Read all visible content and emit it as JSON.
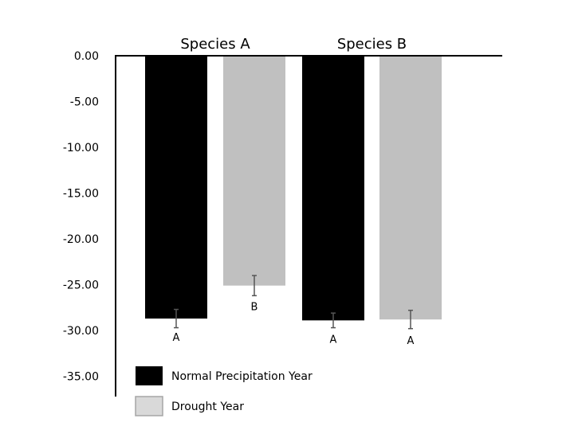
{
  "chart_data": {
    "type": "bar",
    "title": "",
    "xlabel": "",
    "ylabel": "",
    "ylim": [
      -35,
      0
    ],
    "yticks": [
      "0.00",
      "-5.00",
      "-10.00",
      "-15.00",
      "-20.00",
      "-25.00",
      "-30.00",
      "-35.00"
    ],
    "categories": [
      "Species A",
      "Species B"
    ],
    "series": [
      {
        "name": "Normal Precipitation Year",
        "color": "#000000",
        "values": [
          -28.7,
          -28.9
        ],
        "errors": [
          1.0,
          0.8
        ],
        "labels": [
          "A",
          "A"
        ]
      },
      {
        "name": "Drought Year",
        "color": "#c0c0c0",
        "values": [
          -25.1,
          -28.8
        ],
        "errors": [
          1.1,
          1.0
        ],
        "labels": [
          "B",
          "A"
        ]
      }
    ],
    "legend_position": "bottom-left",
    "grid": false
  }
}
